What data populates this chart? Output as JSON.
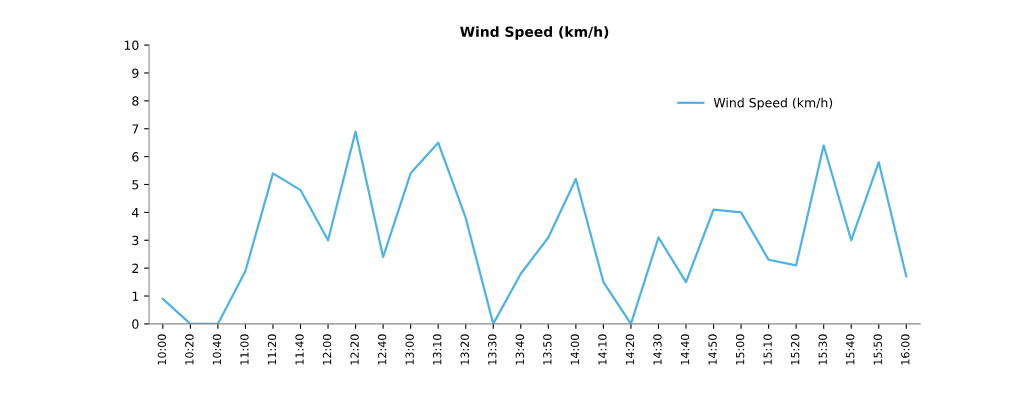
{
  "chart_data": {
    "type": "line",
    "title": "Wind Speed (km/h)",
    "categories": [
      "10:00",
      "10:20",
      "10:40",
      "11:00",
      "11:20",
      "11:40",
      "12:00",
      "12:20",
      "12:40",
      "13:00",
      "13:10",
      "13:20",
      "13:30",
      "13:40",
      "13:50",
      "14:00",
      "14:10",
      "14:20",
      "14:30",
      "14:40",
      "14:50",
      "15:00",
      "15:10",
      "15:20",
      "15:30",
      "15:40",
      "15:50",
      "16:00"
    ],
    "series": [
      {
        "name": "Wind Speed (km/h)",
        "color": "#4db3e6",
        "values": [
          0.9,
          0,
          0,
          1.9,
          5.4,
          4.8,
          3.0,
          6.9,
          2.4,
          5.4,
          6.5,
          3.8,
          0,
          1.8,
          3.1,
          5.2,
          1.5,
          0,
          3.1,
          1.5,
          4.1,
          4.0,
          2.3,
          2.1,
          6.4,
          3.0,
          5.8,
          1.7
        ]
      }
    ],
    "ylim": [
      0,
      10
    ],
    "yticks": [
      0,
      1,
      2,
      3,
      4,
      5,
      6,
      7,
      8,
      9,
      10
    ],
    "grid": false,
    "legend": "top right",
    "marker": "none",
    "line_style": "solid"
  }
}
